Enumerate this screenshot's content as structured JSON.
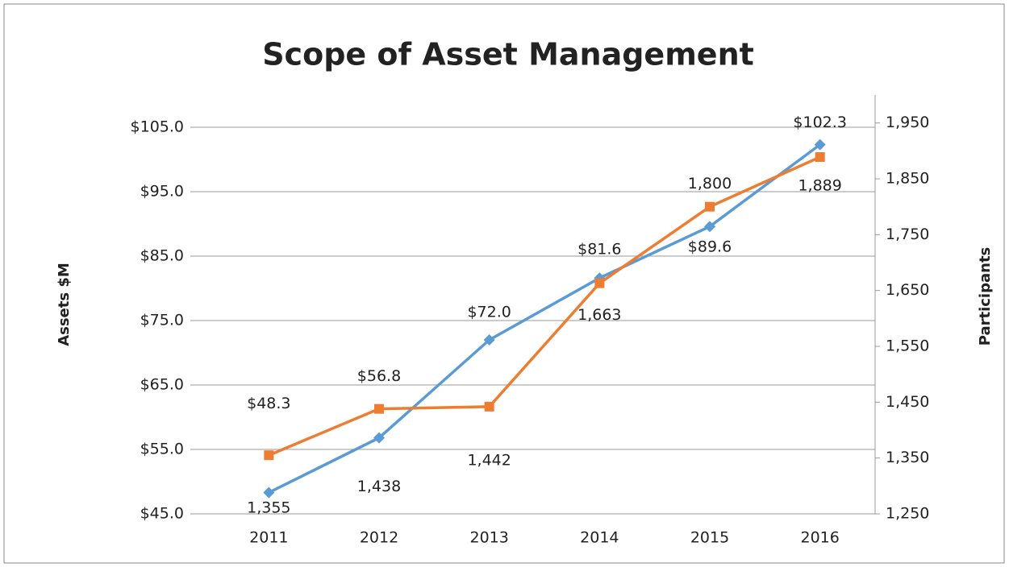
{
  "chart_data": {
    "type": "line",
    "title": "Scope of Asset Management",
    "y_label": "Assets $M",
    "y2_label": "Participants",
    "categories": [
      "2011",
      "2012",
      "2013",
      "2014",
      "2015",
      "2016"
    ],
    "series": [
      {
        "color": "#5b9bd5",
        "marker": "diamond",
        "values": [
          48.3,
          56.8,
          72.0,
          81.6,
          89.6,
          102.3
        ],
        "value_labels": [
          "$48.3",
          "$56.8",
          "$72.0",
          "$81.6",
          "$89.6",
          "$102.3"
        ]
      },
      {
        "color": "#ed7d31",
        "marker": "square",
        "axis": "y2",
        "values": [
          1355,
          1438,
          1442,
          1663,
          1800,
          1889
        ],
        "value_labels": [
          "1,355",
          "1,438",
          "1,442",
          "1,663",
          "1,800",
          "1,889"
        ]
      }
    ],
    "ylim": [
      45,
      110
    ],
    "yticks": [
      {
        "value": 45,
        "label": "$45.0"
      },
      {
        "value": 55,
        "label": "$55.0"
      },
      {
        "value": 65,
        "label": "$65.0"
      },
      {
        "value": 75,
        "label": "$75.0"
      },
      {
        "value": 85,
        "label": "$85.0"
      },
      {
        "value": 95,
        "label": "$95.0"
      },
      {
        "value": 105,
        "label": "$105.0"
      }
    ],
    "y2lim": [
      1250,
      2000
    ],
    "y2ticks": [
      {
        "value": 1250,
        "label": "1,250"
      },
      {
        "value": 1350,
        "label": "1,350"
      },
      {
        "value": 1450,
        "label": "1,450"
      },
      {
        "value": 1550,
        "label": "1,550"
      },
      {
        "value": 1650,
        "label": "1,650"
      },
      {
        "value": 1750,
        "label": "1,750"
      },
      {
        "value": 1850,
        "label": "1,850"
      },
      {
        "value": 1950,
        "label": "1,950"
      }
    ],
    "grid": true
  }
}
